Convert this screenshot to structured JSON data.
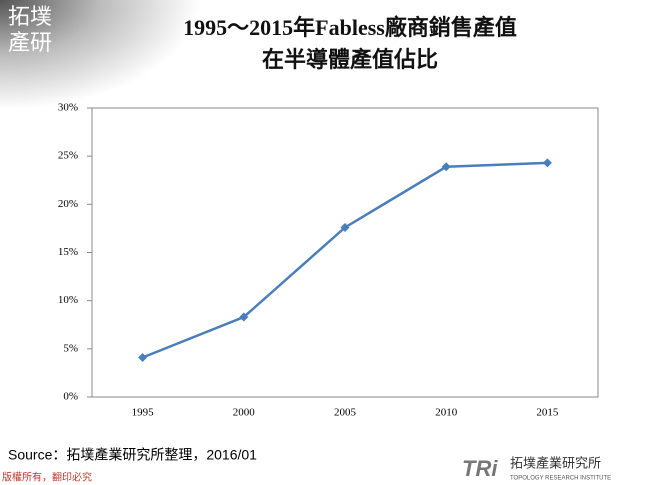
{
  "chart_data": {
    "type": "line",
    "title": "1995～2015年Fabless廠商銷售產值",
    "subtitle": "在半導體產值佔比",
    "categories": [
      "1995",
      "2000",
      "2005",
      "2010",
      "2015"
    ],
    "series": [
      {
        "name": "Fabless",
        "color": "#4a7ebb",
        "values": [
          4.1,
          8.3,
          17.6,
          23.9,
          24.3
        ]
      }
    ],
    "ylim": [
      0,
      30
    ],
    "yticks": [
      {
        "value": 0,
        "label": "0%"
      },
      {
        "value": 5,
        "label": "5%"
      },
      {
        "value": 10,
        "label": "10%"
      },
      {
        "value": 15,
        "label": "15%"
      },
      {
        "value": 20,
        "label": "20%"
      },
      {
        "value": 25,
        "label": "25%"
      },
      {
        "value": 30,
        "label": "30%"
      }
    ],
    "grid": false
  },
  "logo": [
    "拓墣",
    "產研"
  ],
  "source": "Source：拓墣產業研究所整理，2016/01",
  "copyright": "版權所有，翻印必究",
  "brand": {
    "mark": "TRi",
    "name": "拓墣產業研究所",
    "english": "TOPOLOGY RESEARCH INSTITUTE"
  }
}
